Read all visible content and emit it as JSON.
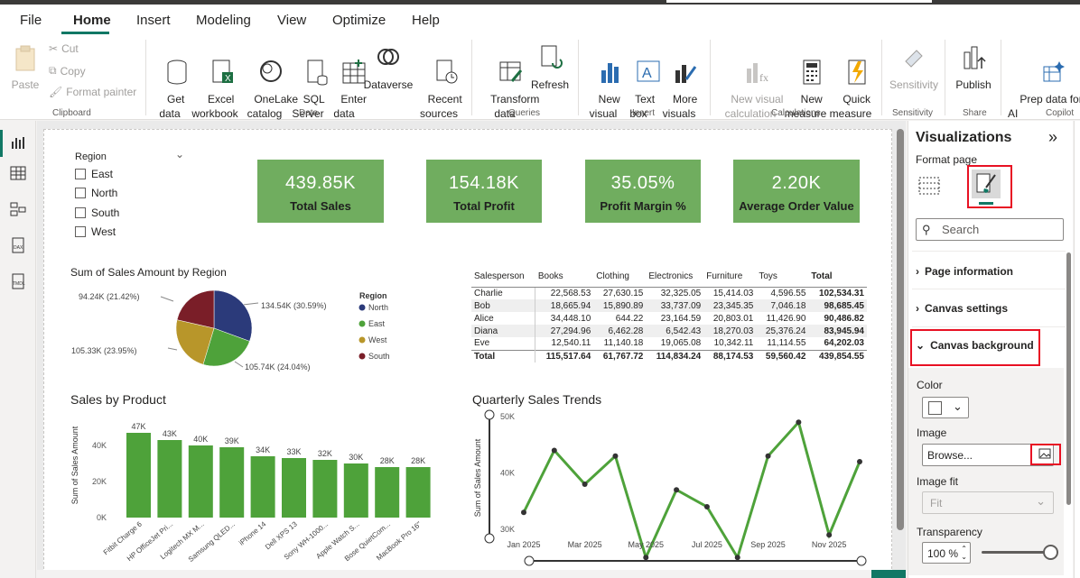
{
  "menu": [
    "File",
    "Home",
    "Insert",
    "Modeling",
    "View",
    "Optimize",
    "Help"
  ],
  "ribbon": {
    "clipboard": {
      "paste": "Paste",
      "cut": "Cut",
      "copy": "Copy",
      "format_painter": "Format painter",
      "label": "Clipboard"
    },
    "data": {
      "get_data": "Get\ndata",
      "excel": "Excel\nworkbook",
      "onelake": "OneLake\ncatalog",
      "sql": "SQL\nServer",
      "enter": "Enter\ndata",
      "dataverse": "Dataverse",
      "recent": "Recent\nsources",
      "label": "Data"
    },
    "queries": {
      "transform": "Transform\ndata",
      "refresh": "Refresh",
      "label": "Queries"
    },
    "insert": {
      "new_visual": "New\nvisual",
      "text_box": "Text\nbox",
      "more_visuals": "More\nvisuals",
      "label": "Insert"
    },
    "calculations": {
      "new_visual_calc": "New visual\ncalculation",
      "new_measure": "New\nmeasure",
      "quick_measure": "Quick\nmeasure",
      "label": "Calculations"
    },
    "sensitivity": {
      "btn": "Sensitivity",
      "label": "Sensitivity"
    },
    "share": {
      "publish": "Publish",
      "label": "Share"
    },
    "copilot": {
      "prep": "Prep data for C\nAI",
      "label": "Copilot"
    }
  },
  "slicer": {
    "title": "Region",
    "items": [
      "East",
      "North",
      "South",
      "West"
    ]
  },
  "kpis": [
    {
      "value": "439.85K",
      "label": "Total Sales"
    },
    {
      "value": "154.18K",
      "label": "Total Profit"
    },
    {
      "value": "35.05%",
      "label": "Profit Margin %"
    },
    {
      "value": "2.20K",
      "label": "Average Order Value"
    }
  ],
  "pie": {
    "title": "Sum of Sales Amount by Region",
    "legend_title": "Region",
    "labels": [
      "134.54K (30.59%)",
      "105.74K (24.04%)",
      "105.33K (23.95%)",
      "94.24K (21.42%)"
    ]
  },
  "table": {
    "headers": [
      "Salesperson",
      "Books",
      "Clothing",
      "Electronics",
      "Furniture",
      "Toys",
      "Total"
    ],
    "rows": [
      [
        "Charlie",
        "22,568.53",
        "27,630.15",
        "32,325.05",
        "15,414.03",
        "4,596.55",
        "102,534.31"
      ],
      [
        "Bob",
        "18,665.94",
        "15,890.89",
        "33,737.09",
        "23,345.35",
        "7,046.18",
        "98,685.45"
      ],
      [
        "Alice",
        "34,448.10",
        "644.22",
        "23,164.59",
        "20,803.01",
        "11,426.90",
        "90,486.82"
      ],
      [
        "Diana",
        "27,294.96",
        "6,462.28",
        "6,542.43",
        "18,270.03",
        "25,376.24",
        "83,945.94"
      ],
      [
        "Eve",
        "12,540.11",
        "11,140.18",
        "19,065.08",
        "10,342.11",
        "11,114.55",
        "64,202.03"
      ],
      [
        "Total",
        "115,517.64",
        "61,767.72",
        "114,834.24",
        "88,174.53",
        "59,560.42",
        "439,854.55"
      ]
    ]
  },
  "chart_data": [
    {
      "type": "pie",
      "title": "Sum of Sales Amount by Region",
      "legend_title": "Region",
      "categories": [
        "North",
        "East",
        "West",
        "South"
      ],
      "values": [
        134.54,
        105.74,
        105.33,
        94.24
      ],
      "colors": [
        "#2b3a7a",
        "#4ea23a",
        "#b8962a",
        "#7a1e28"
      ]
    },
    {
      "type": "bar",
      "title": "Sales by Product",
      "ylabel": "Sum of Sales Amount",
      "categories": [
        "Fitbit Charge 6",
        "HP OfficeJet Pri...",
        "Logitech MX M...",
        "Samsung QLED...",
        "iPhone 14",
        "Dell XPS 13",
        "Sony WH-1000...",
        "Apple Watch S...",
        "Bose QuietCom...",
        "MacBook Pro 16\""
      ],
      "values": [
        47,
        43,
        40,
        39,
        34,
        33,
        32,
        30,
        28,
        28
      ],
      "data_labels": [
        "47K",
        "43K",
        "40K",
        "39K",
        "34K",
        "33K",
        "32K",
        "30K",
        "28K",
        "28K"
      ],
      "yticks": [
        "0K",
        "20K",
        "40K"
      ],
      "ylim": [
        0,
        50
      ],
      "color": "#4ea23a"
    },
    {
      "type": "line",
      "title": "Quarterly Sales Trends",
      "ylabel": "Sum of Sales Amount",
      "x": [
        "Jan 2025",
        "Feb 2025",
        "Mar 2025",
        "Apr 2025",
        "May 2025",
        "Jun 2025",
        "Jul 2025",
        "Aug 2025",
        "Sep 2025",
        "Oct 2025",
        "Nov 2025",
        "Dec 2025"
      ],
      "xticks": [
        "Jan 2025",
        "Mar 2025",
        "May 2025",
        "Jul 2025",
        "Sep 2025",
        "Nov 2025"
      ],
      "values": [
        33,
        44,
        38,
        43,
        25,
        37,
        34,
        25,
        43,
        49,
        29,
        42
      ],
      "yticks": [
        "30K",
        "40K",
        "50K"
      ],
      "ylim": [
        26,
        50
      ],
      "color": "#4ea23a"
    }
  ],
  "pane": {
    "title": "Visualizations",
    "format_page": "Format page",
    "search": "Search",
    "sections": [
      "Page information",
      "Canvas settings",
      "Canvas background"
    ],
    "color_label": "Color",
    "image_label": "Image",
    "image_value": "Browse...",
    "image_fit_label": "Image fit",
    "image_fit_value": "Fit",
    "transparency_label": "Transparency",
    "transparency_value": "100 %"
  }
}
